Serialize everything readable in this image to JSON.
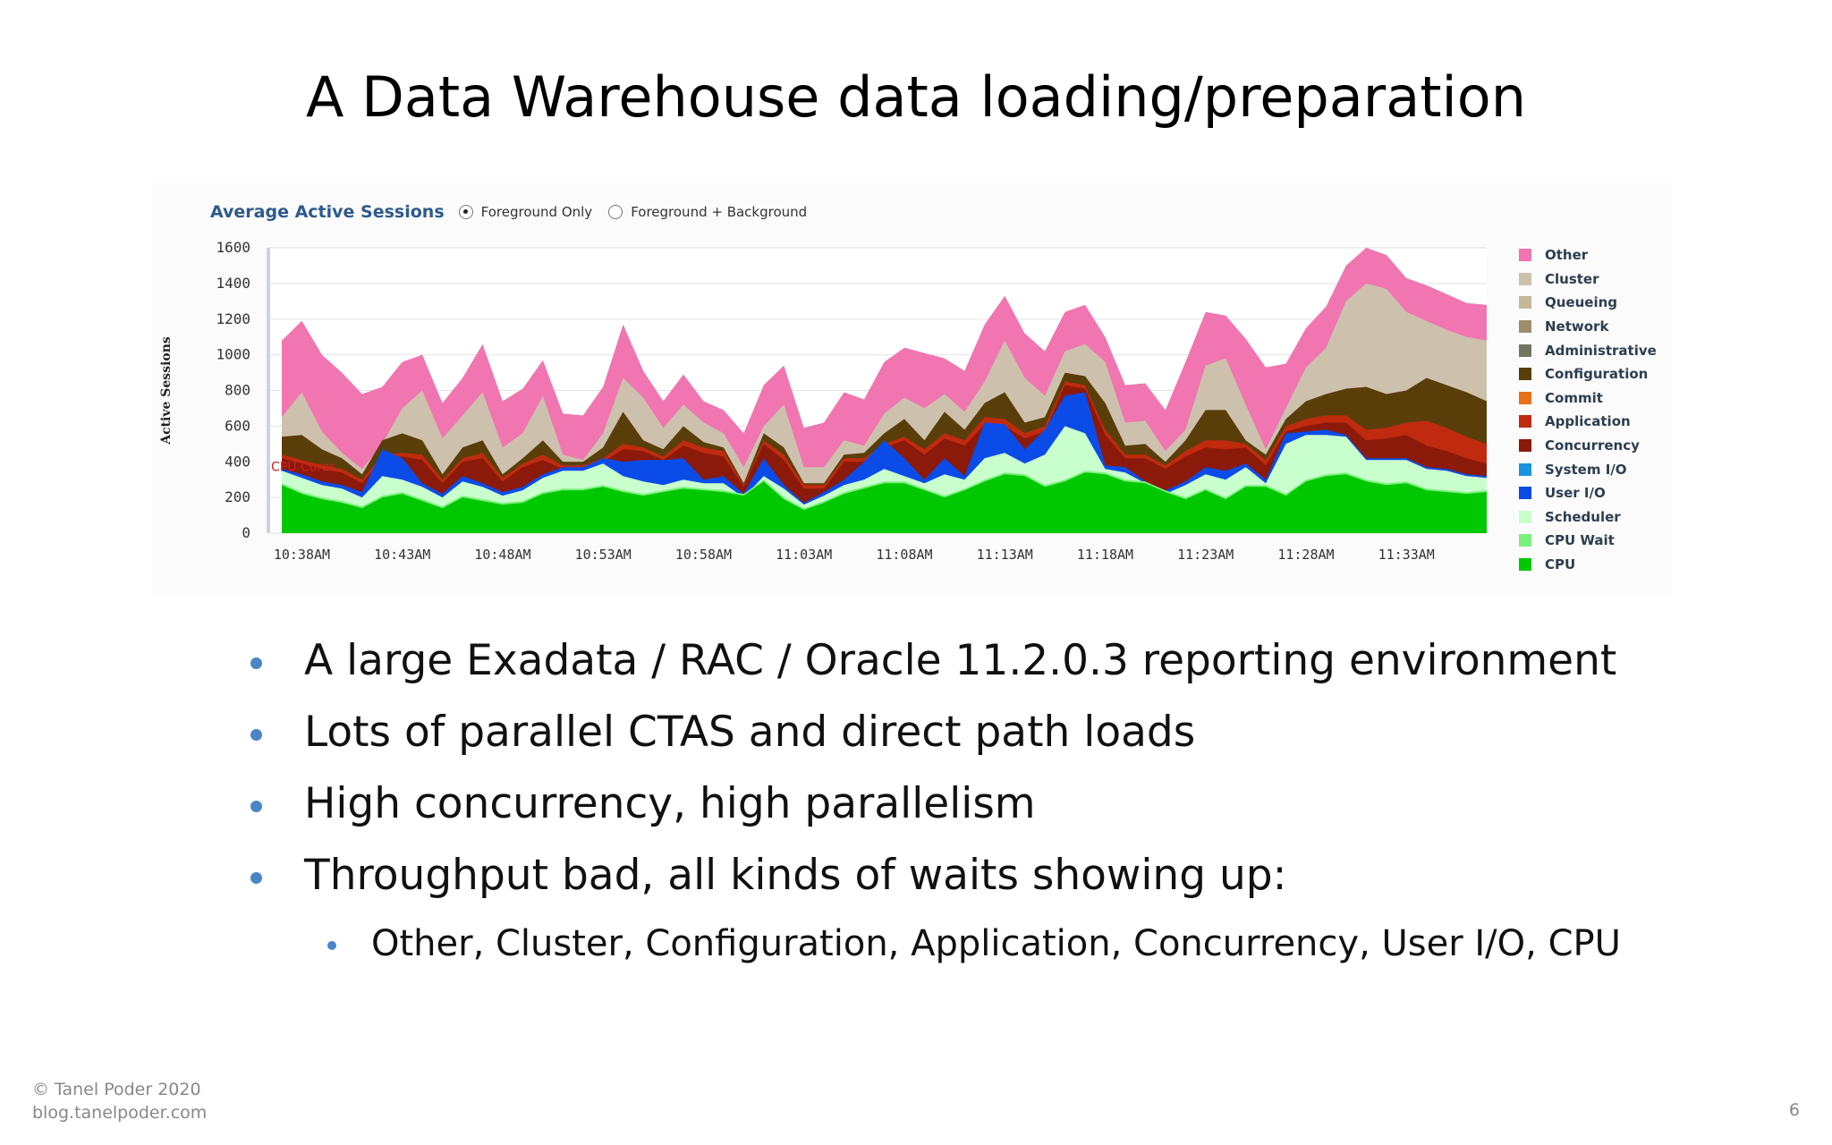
{
  "slide": {
    "title": "A Data Warehouse data loading/preparation",
    "bullets": [
      "A large Exadata / RAC / Oracle 11.2.0.3 reporting environment",
      "Lots of parallel CTAS and direct path loads",
      "High concurrency, high parallelism",
      "Throughput bad, all kinds of waits showing up:"
    ],
    "sub_bullets": [
      "Other, Cluster, Configuration, Application, Concurrency, User I/O, CPU"
    ],
    "footer_line1": "© Tanel Poder 2020",
    "footer_line2": "blog.tanelpoder.com",
    "page_number": "6"
  },
  "chart_header": {
    "title": "Average Active Sessions",
    "options": [
      {
        "label": "Foreground Only",
        "selected": true
      },
      {
        "label": "Foreground + Background",
        "selected": false
      }
    ]
  },
  "chart_data": {
    "type": "area",
    "stacked": true,
    "title": "Average Active Sessions",
    "xlabel": "",
    "ylabel": "Active Sessions",
    "ylim": [
      0,
      1600
    ],
    "yticks": [
      0,
      200,
      400,
      600,
      800,
      1000,
      1200,
      1400,
      1600
    ],
    "xtick_labels": [
      "10:38AM",
      "10:43AM",
      "10:48AM",
      "10:53AM",
      "10:58AM",
      "11:03AM",
      "11:08AM",
      "11:13AM",
      "11:18AM",
      "11:23AM",
      "11:28AM",
      "11:33AM"
    ],
    "x_start": "10:37AM",
    "x_end": "11:37AM",
    "x_step_minutes": 1,
    "grid": true,
    "legend_position": "right",
    "series_totals": {
      "Other": [
        1080,
        1190,
        1000,
        900,
        780,
        820,
        960,
        1000,
        730,
        870,
        1060,
        740,
        810,
        970,
        670,
        660,
        820,
        1170,
        910,
        740,
        890,
        740,
        690,
        560,
        830,
        940,
        590,
        620,
        790,
        750,
        960,
        1040,
        1010,
        980,
        910,
        1170,
        1330,
        1120,
        1020,
        1240,
        1280,
        1100,
        830,
        840,
        690,
        960,
        1240,
        1220,
        1090,
        930,
        950,
        1150,
        1270,
        1500,
        1600,
        1560,
        1430,
        1390,
        1340,
        1290,
        1280
      ],
      "Cluster": [
        650,
        790,
        570,
        450,
        360,
        500,
        700,
        800,
        530,
        660,
        790,
        480,
        560,
        770,
        440,
        410,
        560,
        870,
        760,
        590,
        720,
        620,
        560,
        370,
        600,
        720,
        370,
        370,
        520,
        490,
        670,
        760,
        700,
        780,
        680,
        850,
        1080,
        870,
        770,
        1020,
        1060,
        960,
        620,
        630,
        460,
        580,
        940,
        980,
        720,
        470,
        700,
        930,
        1040,
        1300,
        1400,
        1370,
        1240,
        1190,
        1140,
        1100,
        1080
      ],
      "Configuration": [
        540,
        550,
        470,
        420,
        330,
        520,
        560,
        520,
        330,
        480,
        520,
        330,
        420,
        520,
        400,
        400,
        480,
        680,
        520,
        470,
        600,
        510,
        480,
        280,
        560,
        480,
        280,
        280,
        440,
        450,
        560,
        640,
        520,
        680,
        580,
        730,
        790,
        620,
        650,
        900,
        880,
        730,
        490,
        500,
        400,
        520,
        690,
        690,
        520,
        440,
        640,
        740,
        780,
        810,
        820,
        780,
        800,
        870,
        830,
        790,
        740
      ],
      "Application": [
        440,
        410,
        380,
        360,
        300,
        440,
        450,
        440,
        300,
        420,
        450,
        310,
        390,
        440,
        380,
        380,
        420,
        500,
        480,
        430,
        520,
        480,
        460,
        270,
        520,
        440,
        270,
        270,
        420,
        420,
        500,
        540,
        470,
        560,
        520,
        650,
        640,
        560,
        600,
        850,
        830,
        580,
        440,
        440,
        380,
        460,
        520,
        520,
        500,
        410,
        600,
        640,
        660,
        660,
        580,
        590,
        620,
        630,
        590,
        540,
        500
      ],
      "Concurrency": [
        420,
        390,
        360,
        340,
        280,
        420,
        430,
        410,
        280,
        400,
        420,
        290,
        370,
        410,
        360,
        360,
        400,
        470,
        460,
        410,
        490,
        450,
        430,
        260,
        500,
        410,
        250,
        250,
        400,
        400,
        480,
        520,
        440,
        530,
        490,
        610,
        600,
        530,
        570,
        830,
        810,
        550,
        420,
        420,
        360,
        430,
        480,
        470,
        480,
        380,
        570,
        600,
        620,
        620,
        520,
        530,
        550,
        490,
        460,
        420,
        390
      ],
      "User I/O": [
        360,
        330,
        290,
        270,
        230,
        470,
        420,
        280,
        220,
        320,
        280,
        230,
        260,
        330,
        370,
        370,
        420,
        400,
        410,
        410,
        420,
        300,
        320,
        220,
        420,
        270,
        170,
        230,
        300,
        400,
        520,
        420,
        300,
        420,
        320,
        620,
        610,
        470,
        580,
        770,
        790,
        380,
        370,
        290,
        240,
        290,
        370,
        350,
        390,
        300,
        560,
        570,
        580,
        550,
        420,
        420,
        420,
        370,
        360,
        330,
        320
      ],
      "Scheduler": [
        350,
        310,
        270,
        250,
        200,
        320,
        300,
        260,
        200,
        290,
        260,
        210,
        240,
        310,
        350,
        350,
        390,
        320,
        290,
        270,
        300,
        280,
        280,
        200,
        320,
        250,
        160,
        210,
        270,
        300,
        360,
        320,
        280,
        330,
        300,
        420,
        450,
        390,
        440,
        600,
        560,
        360,
        340,
        280,
        220,
        270,
        330,
        300,
        370,
        280,
        500,
        550,
        550,
        540,
        410,
        410,
        410,
        360,
        350,
        320,
        310
      ],
      "CPU Wait": [
        280,
        230,
        200,
        180,
        150,
        210,
        230,
        190,
        150,
        210,
        190,
        170,
        180,
        230,
        250,
        250,
        270,
        240,
        220,
        240,
        260,
        250,
        240,
        220,
        300,
        200,
        140,
        180,
        230,
        260,
        290,
        290,
        250,
        210,
        250,
        300,
        340,
        330,
        270,
        300,
        350,
        340,
        300,
        290,
        240,
        200,
        250,
        200,
        270,
        270,
        220,
        300,
        330,
        340,
        300,
        280,
        290,
        250,
        240,
        230,
        240
      ],
      "CPU": [
        270,
        220,
        190,
        170,
        140,
        200,
        220,
        180,
        140,
        200,
        180,
        160,
        170,
        220,
        240,
        240,
        260,
        230,
        210,
        230,
        250,
        240,
        230,
        210,
        290,
        190,
        130,
        170,
        220,
        250,
        280,
        280,
        240,
        200,
        240,
        290,
        330,
        320,
        260,
        290,
        340,
        330,
        290,
        280,
        230,
        190,
        240,
        190,
        260,
        260,
        210,
        290,
        320,
        330,
        290,
        270,
        280,
        240,
        230,
        220,
        230
      ]
    },
    "legend": [
      {
        "name": "Other",
        "color": "#f075b0"
      },
      {
        "name": "Cluster",
        "color": "#cdc1ae"
      },
      {
        "name": "Queueing",
        "color": "#c4b898"
      },
      {
        "name": "Network",
        "color": "#9c8e6b"
      },
      {
        "name": "Administrative",
        "color": "#727560"
      },
      {
        "name": "Configuration",
        "color": "#5a3e0a"
      },
      {
        "name": "Commit",
        "color": "#e8701a"
      },
      {
        "name": "Application",
        "color": "#c02a0e"
      },
      {
        "name": "Concurrency",
        "color": "#8b1a0a"
      },
      {
        "name": "System I/O",
        "color": "#1a94e0"
      },
      {
        "name": "User I/O",
        "color": "#0b4ce8"
      },
      {
        "name": "Scheduler",
        "color": "#c9ffcc"
      },
      {
        "name": "CPU Wait",
        "color": "#7cf07c"
      },
      {
        "name": "CPU",
        "color": "#00c800"
      }
    ],
    "annotation": "CPU Cores"
  }
}
